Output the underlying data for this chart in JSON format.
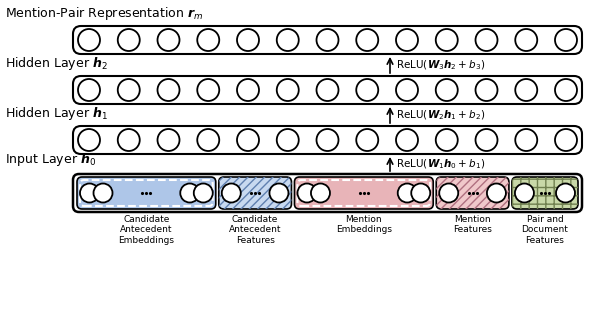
{
  "title": "Mention-Pair Representation $\\boldsymbol{r}_m$",
  "hidden2_label": "Hidden Layer $\\boldsymbol{h}_2$",
  "hidden1_label": "Hidden Layer $\\boldsymbol{h}_1$",
  "input_label": "Input Layer $\\boldsymbol{h}_0$",
  "relu3": "ReLU($\\boldsymbol{W}_3\\boldsymbol{h}_2 + b_3$)",
  "relu2": "ReLU($\\boldsymbol{W}_2\\boldsymbol{h}_1 + b_2$)",
  "relu1": "ReLU($\\boldsymbol{W}_1\\boldsymbol{h}_0 + b_1$)",
  "n_circles": 13,
  "bg_color": "#ffffff",
  "blue_fill": "#aec6e8",
  "blue_light_fill": "#c8d9f0",
  "pink_fill": "#e8b4b8",
  "pink_light_fill": "#f0c8ca",
  "green_fill": "#c8d8a8",
  "group_labels": [
    "Candidate\nAntecedent\nEmbeddings",
    "Candidate\nAntecedent\nFeatures",
    "Mention\nEmbeddings",
    "Mention\nFeatures",
    "Pair and\nDocument\nFeatures"
  ]
}
